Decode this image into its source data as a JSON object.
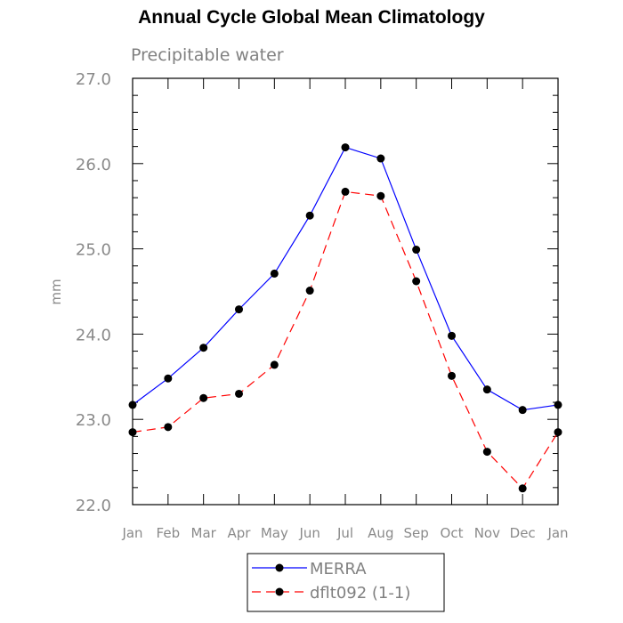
{
  "chart_data": {
    "type": "line",
    "title": "Annual Cycle Global Mean Climatology",
    "subtitle": "Precipitable water",
    "xlabel": "",
    "ylabel": "mm",
    "categories": [
      "Jan",
      "Feb",
      "Mar",
      "Apr",
      "May",
      "Jun",
      "Jul",
      "Aug",
      "Sep",
      "Oct",
      "Nov",
      "Dec",
      "Jan"
    ],
    "ylim": [
      22.0,
      27.0
    ],
    "yticks": [
      "22.0",
      "23.0",
      "24.0",
      "25.0",
      "26.0",
      "27.0"
    ],
    "series": [
      {
        "name": "MERRA",
        "color": "#0000ff",
        "dash": "solid",
        "values": [
          23.17,
          23.48,
          23.84,
          24.29,
          24.71,
          25.39,
          26.19,
          26.06,
          24.99,
          23.98,
          23.35,
          23.11,
          23.17
        ]
      },
      {
        "name": "dflt092 (1-1)",
        "color": "#ff0000",
        "dash": "dashed",
        "values": [
          22.85,
          22.91,
          23.25,
          23.3,
          23.64,
          24.51,
          25.67,
          25.62,
          24.62,
          23.51,
          22.62,
          22.19,
          22.85
        ]
      }
    ],
    "legend_position": "bottom-center"
  }
}
